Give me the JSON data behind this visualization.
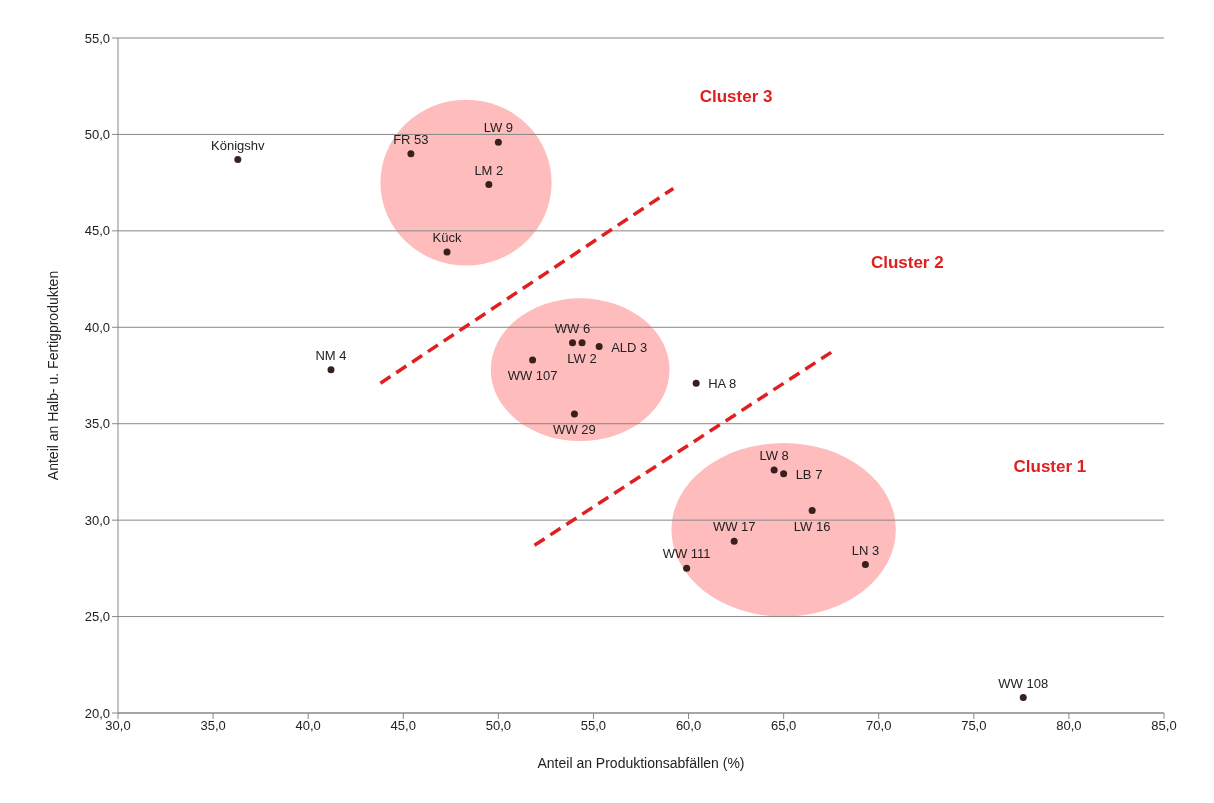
{
  "chart_data": {
    "type": "scatter",
    "xlabel": "Anteil an Produktionsabfällen (%)",
    "ylabel": "Anteil an Halb- u. Fertigprodukten",
    "x": [
      36.3,
      45.4,
      50.0,
      49.5,
      47.3,
      41.2,
      51.8,
      53.9,
      54.4,
      55.3,
      54.0,
      60.4,
      64.5,
      65.0,
      66.5,
      62.4,
      59.9,
      69.3,
      77.6
    ],
    "series": [
      {
        "color": "#3a1f1f",
        "values": [
          48.7,
          49.0,
          49.6,
          47.4,
          43.9,
          37.8,
          38.3,
          39.2,
          39.2,
          39.0,
          35.5,
          37.1,
          32.6,
          32.4,
          30.5,
          28.9,
          27.5,
          27.7,
          20.8
        ],
        "value_labels": [
          "Königshv",
          "FR 53",
          "LW 9",
          "LM 2",
          "Kück",
          "NM 4",
          "WW 107",
          "WW 6",
          "LW 2",
          "ALD 3",
          "WW 29",
          "HA 8",
          "LW 8",
          "LB 7",
          "LW 16",
          "WW 17",
          "WW 111",
          "LN 3",
          "WW 108"
        ]
      }
    ],
    "xlim": [
      30,
      85
    ],
    "xticks": [
      {
        "value": 30,
        "label": "30,0"
      },
      {
        "value": 35,
        "label": "35,0"
      },
      {
        "value": 40,
        "label": "40,0"
      },
      {
        "value": 45,
        "label": "45,0"
      },
      {
        "value": 50,
        "label": "50,0"
      },
      {
        "value": 55,
        "label": "55,0"
      },
      {
        "value": 60,
        "label": "60,0"
      },
      {
        "value": 65,
        "label": "65,0"
      },
      {
        "value": 70,
        "label": "70,0"
      },
      {
        "value": 75,
        "label": "75,0"
      },
      {
        "value": 80,
        "label": "80,0"
      },
      {
        "value": 85,
        "label": "85,0"
      }
    ],
    "ylim": [
      20,
      55
    ],
    "yticks": [
      {
        "value": 20,
        "label": "20,0"
      },
      {
        "value": 25,
        "label": "25,0"
      },
      {
        "value": 30,
        "label": "30,0"
      },
      {
        "value": 35,
        "label": "35,0"
      },
      {
        "value": 40,
        "label": "40,0"
      },
      {
        "value": 45,
        "label": "45,0"
      },
      {
        "value": 50,
        "label": "50,0"
      },
      {
        "value": 55,
        "label": "55,0"
      }
    ],
    "grid": "y",
    "marker": "circle",
    "legend": false,
    "annotations": [
      "Cluster 3",
      "Cluster 2",
      "Cluster 1"
    ]
  }
}
